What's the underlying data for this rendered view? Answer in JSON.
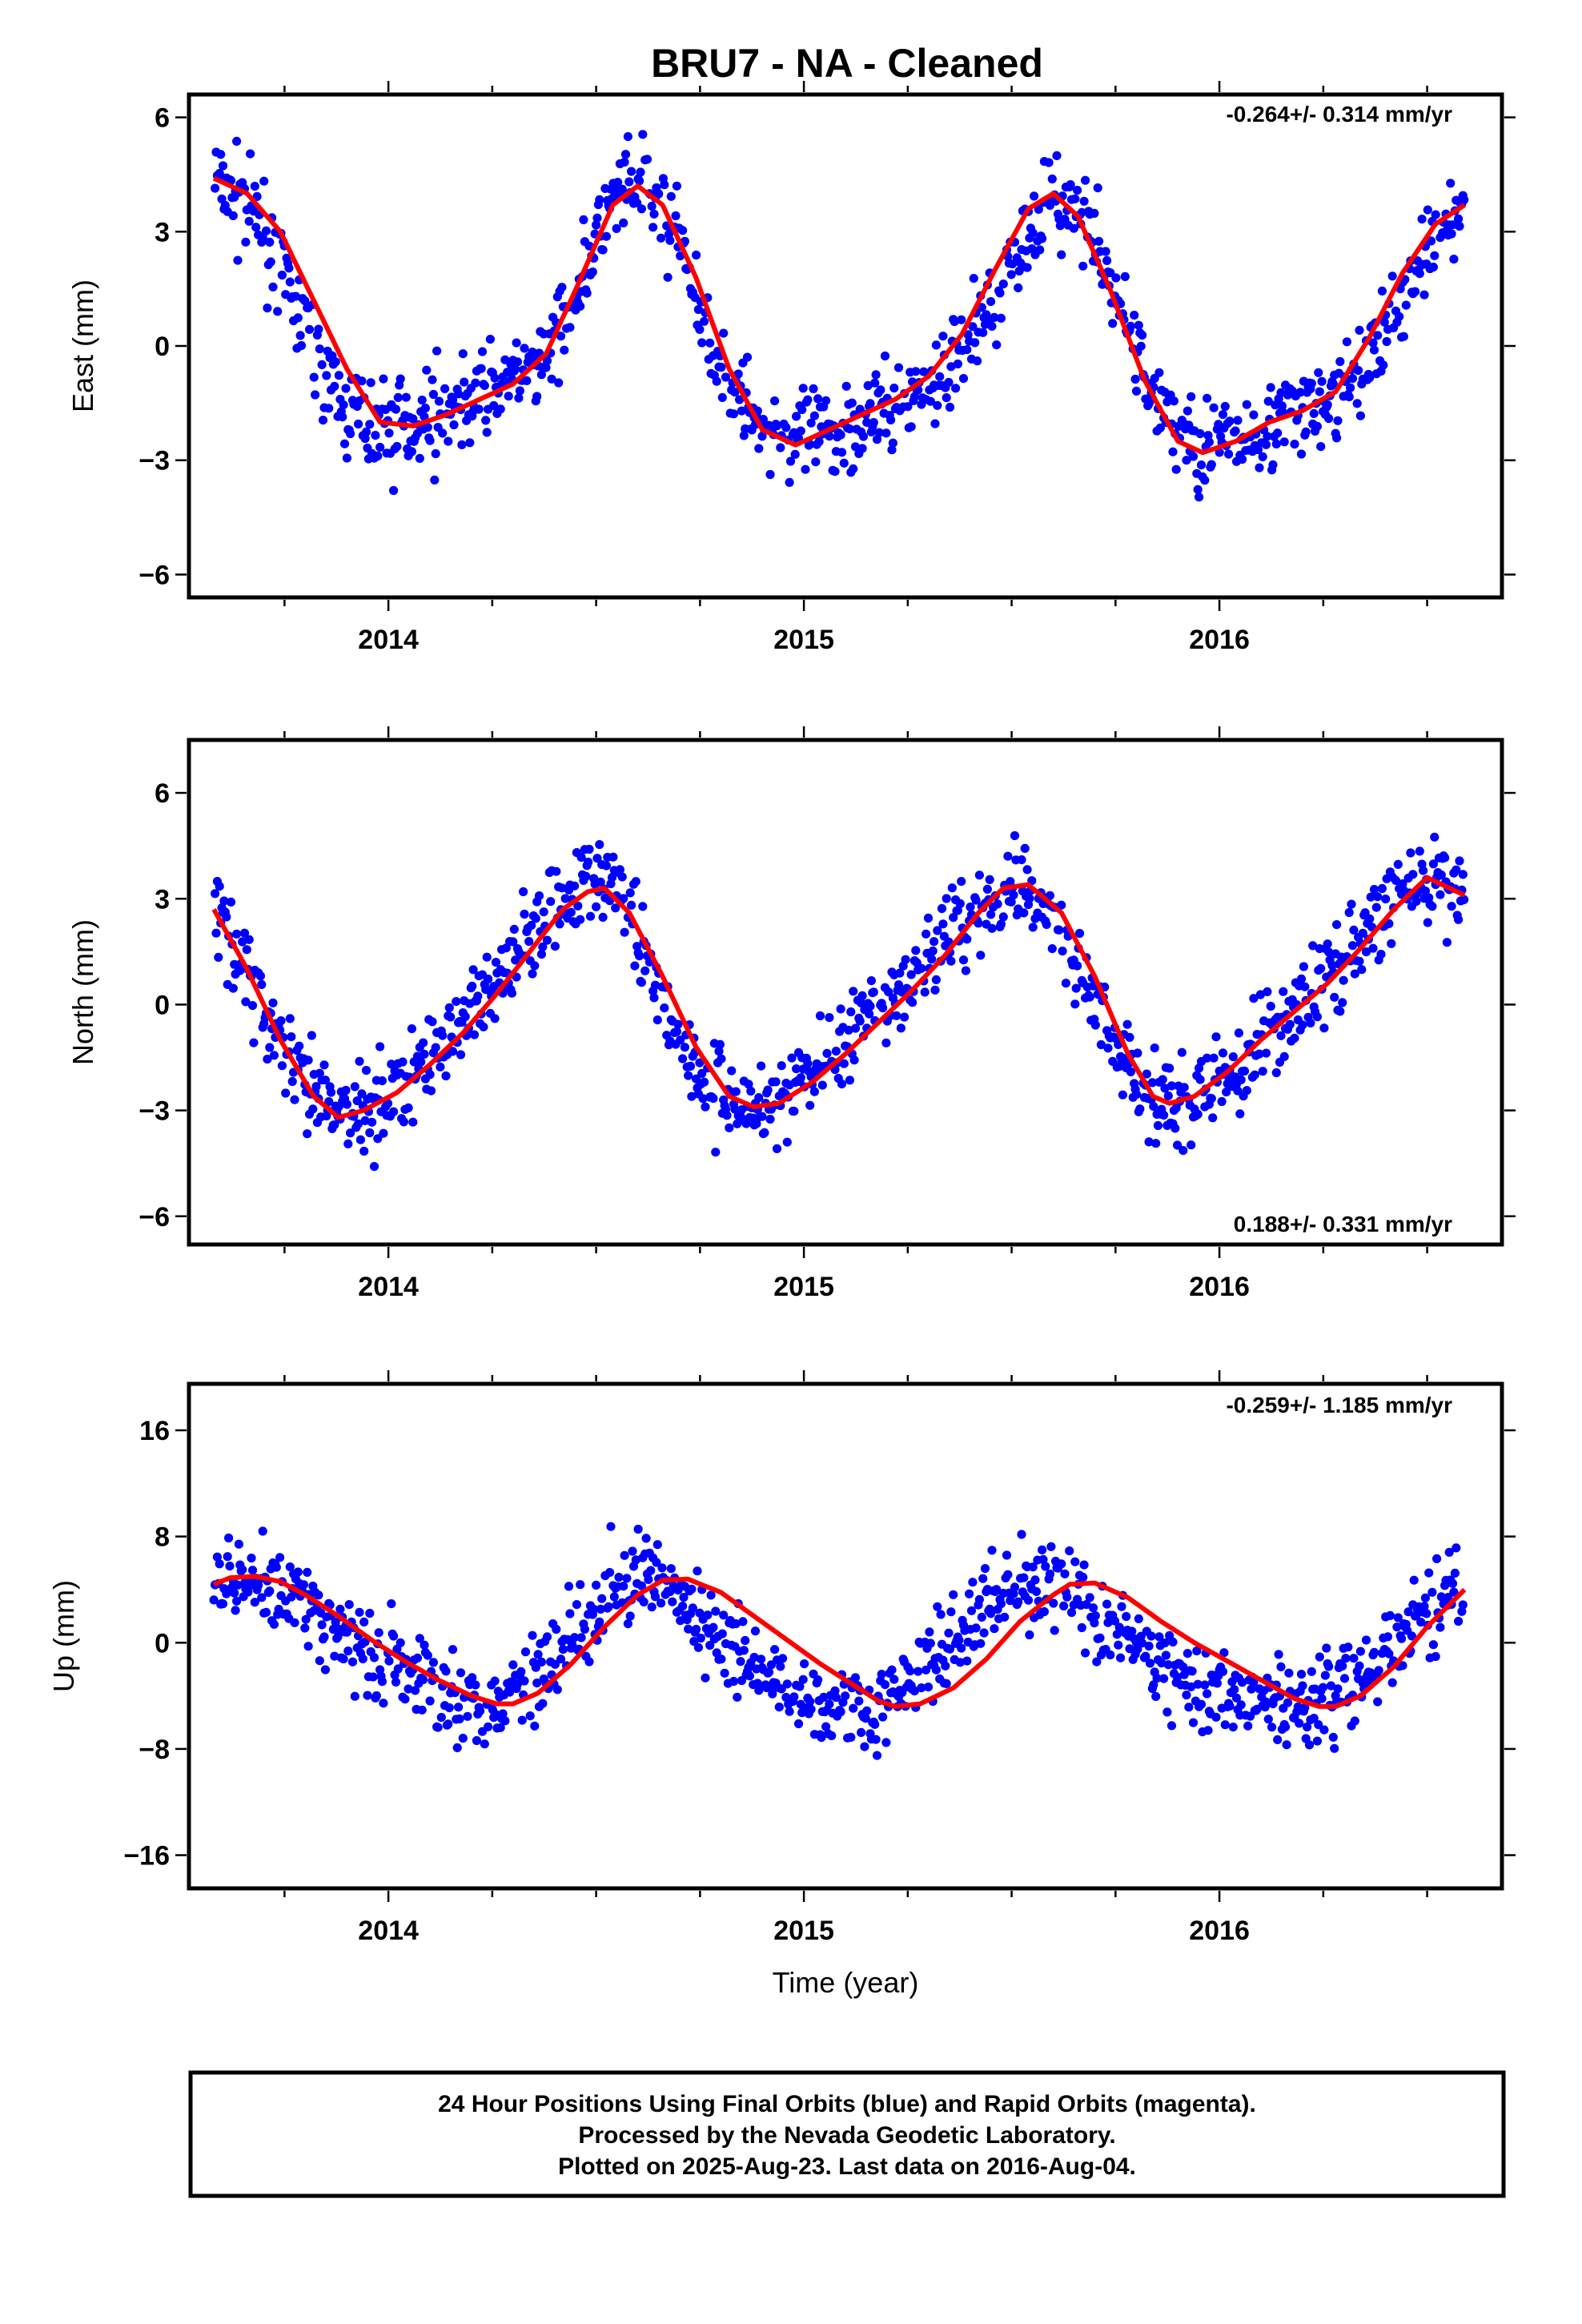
{
  "title": "BRU7  - NA - Cleaned",
  "colors": {
    "points": "#0000ff",
    "fit": "#ff0000",
    "frame": "#000000"
  },
  "footer": {
    "lines": [
      "24 Hour Positions Using Final Orbits (blue) and Rapid Orbits (magenta).",
      "Processed by the Nevada Geodetic Laboratory.",
      "Plotted on 2025-Aug-23. Last data on 2016-Aug-04."
    ]
  },
  "chart_data": [
    {
      "type": "scatter",
      "panel": "east",
      "ylabel": "East (mm)",
      "xlabel": "",
      "xlim": [
        2013.52,
        2016.68
      ],
      "ylim": [
        -6.6,
        6.6
      ],
      "xticks": [
        2014,
        2015,
        2016
      ],
      "yticks": [
        -6,
        -3,
        0,
        3,
        6
      ],
      "ytick_labels": [
        "−6",
        "−3",
        "0",
        "3",
        "6"
      ],
      "rate_text": "-0.264+/- 0.314 mm/yr",
      "rate_position": "top-right",
      "series": [
        {
          "kind": "points",
          "x": [
            2013.58,
            2013.65,
            2013.72,
            2013.8,
            2013.88,
            2013.96,
            2014.04,
            2014.13,
            2014.21,
            2014.29,
            2014.38,
            2014.46,
            2014.54,
            2014.61,
            2014.69,
            2014.77,
            2014.85,
            2014.93,
            2015.0,
            2015.08,
            2015.17,
            2015.25,
            2015.33,
            2015.42,
            2015.5,
            2015.58,
            2015.66,
            2015.74,
            2015.82,
            2015.9,
            2015.98,
            2016.06,
            2016.15,
            2016.23,
            2016.31,
            2016.4,
            2016.48,
            2016.55,
            2016.59
          ],
          "y": [
            4.4,
            3.8,
            2.5,
            0.5,
            -1.5,
            -2.2,
            -2.0,
            -1.7,
            -1.3,
            -0.9,
            -0.3,
            1.6,
            3.8,
            4.1,
            3.0,
            0.3,
            -1.5,
            -2.3,
            -2.5,
            -2.2,
            -1.8,
            -1.4,
            -0.8,
            0.5,
            2.2,
            3.8,
            3.6,
            1.6,
            -0.8,
            -2.3,
            -2.7,
            -2.3,
            -1.9,
            -1.6,
            -1.1,
            0.4,
            2.0,
            3.4,
            3.6
          ]
        },
        {
          "kind": "fit",
          "x": [
            2013.58,
            2013.66,
            2013.74,
            2013.82,
            2013.9,
            2013.98,
            2014.06,
            2014.14,
            2014.22,
            2014.3,
            2014.38,
            2014.46,
            2014.54,
            2014.6,
            2014.66,
            2014.74,
            2014.82,
            2014.9,
            2014.98,
            2015.06,
            2015.14,
            2015.22,
            2015.3,
            2015.38,
            2015.46,
            2015.54,
            2015.6,
            2015.66,
            2015.74,
            2015.82,
            2015.9,
            2015.96,
            2016.04,
            2016.12,
            2016.2,
            2016.28,
            2016.36,
            2016.44,
            2016.52,
            2016.59
          ],
          "y": [
            4.4,
            4.0,
            3.0,
            1.2,
            -0.6,
            -2.0,
            -2.1,
            -1.8,
            -1.4,
            -1.0,
            -0.2,
            1.7,
            3.7,
            4.2,
            3.7,
            1.8,
            -0.6,
            -2.2,
            -2.6,
            -2.2,
            -1.8,
            -1.4,
            -0.8,
            0.3,
            2.0,
            3.6,
            4.0,
            3.4,
            1.4,
            -0.9,
            -2.5,
            -2.8,
            -2.5,
            -2.0,
            -1.7,
            -1.2,
            0.2,
            1.9,
            3.2,
            3.7
          ]
        }
      ]
    },
    {
      "type": "scatter",
      "panel": "north",
      "ylabel": "North (mm)",
      "xlabel": "",
      "xlim": [
        2013.52,
        2016.68
      ],
      "ylim": [
        -6.8,
        7.5
      ],
      "xticks": [
        2014,
        2015,
        2016
      ],
      "yticks": [
        -6,
        -3,
        0,
        3,
        6
      ],
      "ytick_labels": [
        "−6",
        "−3",
        "0",
        "3",
        "6"
      ],
      "rate_text": "0.188+/- 0.331 mm/yr",
      "rate_position": "bottom-right",
      "series": [
        {
          "kind": "points",
          "x": [
            2013.58,
            2013.65,
            2013.72,
            2013.8,
            2013.88,
            2013.96,
            2014.04,
            2014.13,
            2014.21,
            2014.29,
            2014.38,
            2014.46,
            2014.54,
            2014.61,
            2014.69,
            2014.77,
            2014.85,
            2014.93,
            2015.0,
            2015.08,
            2015.17,
            2015.25,
            2015.33,
            2015.42,
            2015.5,
            2015.58,
            2015.66,
            2015.74,
            2015.82,
            2015.9,
            2015.98,
            2016.06,
            2016.15,
            2016.23,
            2016.31,
            2016.4,
            2016.48,
            2016.55,
            2016.59
          ],
          "y": [
            2.8,
            1.2,
            -0.8,
            -2.4,
            -3.1,
            -2.8,
            -2.2,
            -1.2,
            0.0,
            1.2,
            2.6,
            3.5,
            3.4,
            1.8,
            -0.8,
            -2.4,
            -2.9,
            -2.7,
            -2.1,
            -1.3,
            -0.4,
            0.6,
            1.8,
            2.8,
            3.5,
            2.8,
            1.2,
            -1.0,
            -2.6,
            -3.0,
            -2.4,
            -1.5,
            -0.6,
            0.4,
            1.5,
            2.6,
            3.4,
            3.5,
            3.0
          ]
        },
        {
          "kind": "fit",
          "x": [
            2013.58,
            2013.66,
            2013.74,
            2013.82,
            2013.88,
            2013.94,
            2014.02,
            2014.1,
            2014.18,
            2014.26,
            2014.34,
            2014.42,
            2014.48,
            2014.52,
            2014.58,
            2014.66,
            2014.74,
            2014.82,
            2014.88,
            2014.94,
            2015.02,
            2015.1,
            2015.18,
            2015.26,
            2015.34,
            2015.42,
            2015.48,
            2015.54,
            2015.62,
            2015.7,
            2015.78,
            2015.84,
            2015.88,
            2015.94,
            2016.02,
            2016.1,
            2016.18,
            2016.26,
            2016.34,
            2016.42,
            2016.5,
            2016.59
          ],
          "y": [
            2.7,
            1.0,
            -1.0,
            -2.6,
            -3.2,
            -3.0,
            -2.5,
            -1.7,
            -0.8,
            0.3,
            1.5,
            2.7,
            3.2,
            3.3,
            2.6,
            0.8,
            -1.2,
            -2.6,
            -2.9,
            -2.8,
            -2.2,
            -1.4,
            -0.5,
            0.4,
            1.4,
            2.6,
            3.3,
            3.4,
            2.6,
            0.8,
            -1.4,
            -2.6,
            -2.8,
            -2.6,
            -1.9,
            -1.0,
            -0.2,
            0.6,
            1.6,
            2.7,
            3.6,
            3.1
          ]
        }
      ]
    },
    {
      "type": "scatter",
      "panel": "up",
      "ylabel": "Up (mm)",
      "xlabel": "Time (year)",
      "xlim": [
        2013.52,
        2016.68
      ],
      "ylim": [
        -18.5,
        19.5
      ],
      "xticks": [
        2014,
        2015,
        2016
      ],
      "yticks": [
        -16,
        -8,
        0,
        8,
        16
      ],
      "ytick_labels": [
        "−16",
        "−8",
        "0",
        "8",
        "16"
      ],
      "rate_text": "-0.259+/- 1.185 mm/yr",
      "rate_position": "top-right",
      "series": [
        {
          "kind": "points",
          "x": [
            2013.58,
            2013.65,
            2013.72,
            2013.8,
            2013.88,
            2013.96,
            2014.04,
            2014.13,
            2014.21,
            2014.29,
            2014.38,
            2014.46,
            2014.54,
            2014.61,
            2014.69,
            2014.77,
            2014.85,
            2014.93,
            2015.0,
            2015.08,
            2015.17,
            2015.25,
            2015.33,
            2015.42,
            2015.5,
            2015.58,
            2015.66,
            2015.74,
            2015.82,
            2015.9,
            2015.98,
            2016.06,
            2016.15,
            2016.23,
            2016.31,
            2016.4,
            2016.48,
            2016.55,
            2016.59
          ],
          "y": [
            4.5,
            5.0,
            4.3,
            2.8,
            1.0,
            -0.8,
            -2.4,
            -3.6,
            -4.5,
            -4.0,
            -1.8,
            1.6,
            4.2,
            4.8,
            3.6,
            1.2,
            -1.2,
            -2.8,
            -4.0,
            -5.0,
            -4.8,
            -3.2,
            -0.8,
            2.2,
            4.0,
            4.6,
            3.4,
            1.0,
            -0.8,
            -2.2,
            -3.2,
            -4.0,
            -4.8,
            -4.6,
            -3.2,
            -1.2,
            1.6,
            3.8,
            4.0
          ]
        },
        {
          "kind": "fit",
          "x": [
            2013.58,
            2013.62,
            2013.68,
            2013.74,
            2013.8,
            2013.88,
            2013.96,
            2014.04,
            2014.12,
            2014.2,
            2014.26,
            2014.3,
            2014.36,
            2014.44,
            2014.52,
            2014.6,
            2014.66,
            2014.72,
            2014.8,
            2014.88,
            2014.96,
            2015.04,
            2015.12,
            2015.18,
            2015.22,
            2015.28,
            2015.36,
            2015.44,
            2015.52,
            2015.6,
            2015.64,
            2015.7,
            2015.78,
            2015.86,
            2015.94,
            2016.02,
            2016.1,
            2016.18,
            2016.24,
            2016.28,
            2016.34,
            2016.42,
            2016.5,
            2016.59
          ],
          "y": [
            4.4,
            4.9,
            5.0,
            4.6,
            3.6,
            2.0,
            0.2,
            -1.4,
            -2.8,
            -4.0,
            -4.6,
            -4.6,
            -3.8,
            -1.6,
            1.2,
            3.6,
            4.7,
            4.8,
            3.8,
            2.0,
            0.2,
            -1.6,
            -3.2,
            -4.4,
            -4.8,
            -4.6,
            -3.4,
            -1.2,
            1.6,
            3.6,
            4.4,
            4.5,
            3.4,
            1.6,
            0.0,
            -1.4,
            -2.8,
            -4.2,
            -4.8,
            -4.8,
            -4.0,
            -1.8,
            1.2,
            4.0
          ]
        }
      ]
    }
  ]
}
